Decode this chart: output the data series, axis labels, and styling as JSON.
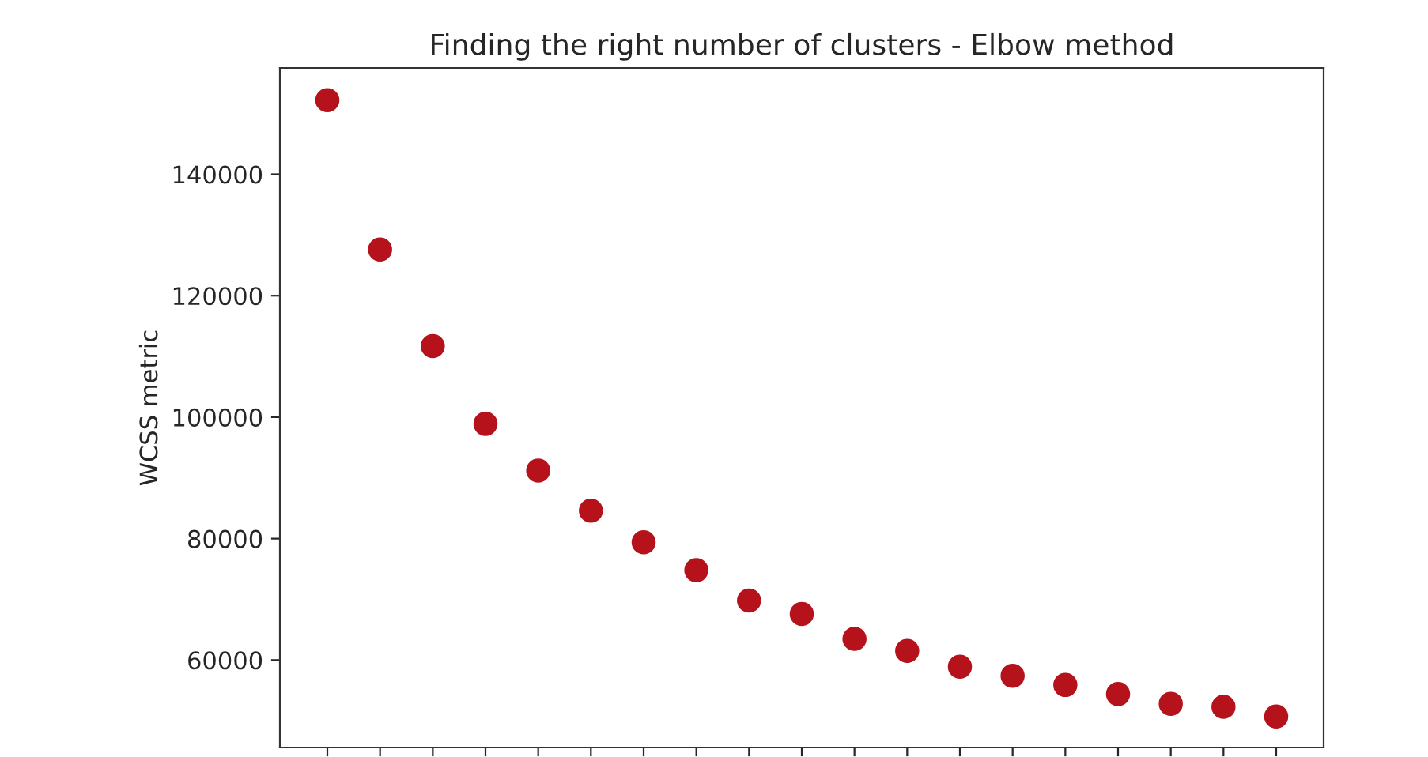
{
  "chart_data": {
    "type": "scatter",
    "title": "Finding the right number of clusters - Elbow method",
    "ylabel": "WCSS metric",
    "categories": [
      null,
      null,
      null,
      null,
      null,
      null,
      null,
      null,
      null,
      null,
      null,
      null,
      null,
      null,
      null,
      null,
      null,
      null,
      null
    ],
    "series": [
      {
        "color": "#b5121b",
        "values": [
          152200,
          127600,
          111700,
          98900,
          91200,
          84600,
          79400,
          74800,
          69800,
          67600,
          63500,
          61500,
          58900,
          57400,
          55900,
          54400,
          52800,
          52300,
          50700
        ]
      }
    ],
    "ylim": [
      45600,
      157500
    ],
    "yticks": [
      60000,
      80000,
      100000,
      120000,
      140000
    ],
    "marker": "circle",
    "grid": false,
    "tick_labels": "y"
  }
}
